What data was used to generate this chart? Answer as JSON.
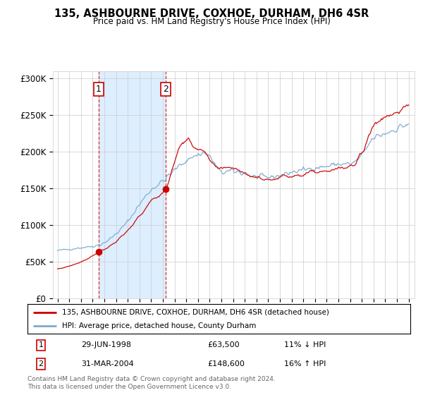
{
  "title": "135, ASHBOURNE DRIVE, COXHOE, DURHAM, DH6 4SR",
  "subtitle": "Price paid vs. HM Land Registry's House Price Index (HPI)",
  "legend_line1": "135, ASHBOURNE DRIVE, COXHOE, DURHAM, DH6 4SR (detached house)",
  "legend_line2": "HPI: Average price, detached house, County Durham",
  "transaction1_label": "1",
  "transaction1_date": "29-JUN-1998",
  "transaction1_price": "£63,500",
  "transaction1_hpi": "11% ↓ HPI",
  "transaction2_label": "2",
  "transaction2_date": "31-MAR-2004",
  "transaction2_price": "£148,600",
  "transaction2_hpi": "16% ↑ HPI",
  "footer": "Contains HM Land Registry data © Crown copyright and database right 2024.\nThis data is licensed under the Open Government Licence v3.0.",
  "red_color": "#cc0000",
  "blue_color": "#7aabcf",
  "shade_color": "#ddeeff",
  "marker1_x": 1998.5,
  "marker1_y": 63500,
  "marker2_x": 2004.25,
  "marker2_y": 148600,
  "ylim": [
    0,
    310000
  ],
  "xlim": [
    1994.6,
    2025.5
  ],
  "yticks": [
    0,
    50000,
    100000,
    150000,
    200000,
    250000,
    300000
  ],
  "ytick_labels": [
    "£0",
    "£50K",
    "£100K",
    "£150K",
    "£200K",
    "£250K",
    "£300K"
  ],
  "xticks": [
    1995,
    1996,
    1997,
    1998,
    1999,
    2000,
    2001,
    2002,
    2003,
    2004,
    2005,
    2006,
    2007,
    2008,
    2009,
    2010,
    2011,
    2012,
    2013,
    2014,
    2015,
    2016,
    2017,
    2018,
    2019,
    2020,
    2021,
    2022,
    2023,
    2024,
    2025
  ]
}
